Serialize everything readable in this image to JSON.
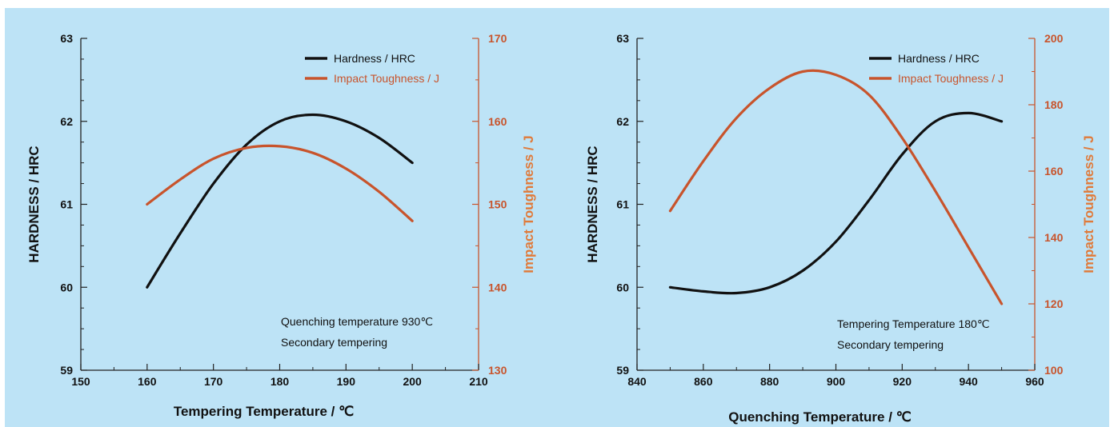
{
  "colors": {
    "hardness": "#111111",
    "toughness": "#c8542c",
    "toughness_axis": "#e07a3a",
    "background": "#bde3f6"
  },
  "chart_data": [
    {
      "type": "line",
      "xlabel": "Tempering Temperature / ℃",
      "ylabel": "HARDNESS / HRC",
      "y2label": "Impact Toughness / J",
      "xlim": [
        150,
        210
      ],
      "xticks": [
        150,
        160,
        170,
        180,
        190,
        200,
        210
      ],
      "ylim": [
        59,
        63
      ],
      "yticks": [
        59,
        60,
        61,
        62,
        63
      ],
      "y2lim": [
        130,
        170
      ],
      "y2ticks": [
        130,
        140,
        150,
        160,
        170
      ],
      "legend_position": "top-right",
      "grid": false,
      "notes": [
        "Quenching temperature 930℃",
        "Secondary tempering"
      ],
      "series": [
        {
          "name": "Hardness / HRC",
          "axis": "left",
          "color": "#111111",
          "x": [
            160,
            165,
            170,
            175,
            180,
            185,
            190,
            195,
            200
          ],
          "y": [
            60.0,
            60.65,
            61.25,
            61.72,
            62.0,
            62.08,
            62.0,
            61.8,
            61.5
          ]
        },
        {
          "name": "Impact Toughness / J",
          "axis": "right",
          "color": "#c8542c",
          "x": [
            160,
            165,
            170,
            175,
            180,
            185,
            190,
            195,
            200
          ],
          "y": [
            150,
            153,
            155.5,
            156.8,
            157,
            156.2,
            154.3,
            151.5,
            148
          ]
        }
      ]
    },
    {
      "type": "line",
      "xlabel": "Quenching Temperature / ℃",
      "ylabel": "HARDNESS / HRC",
      "y2label": "Impact Toughness / J",
      "xlim": [
        840,
        960
      ],
      "xticks": [
        840,
        860,
        880,
        900,
        920,
        940,
        960
      ],
      "ylim": [
        59,
        63
      ],
      "yticks": [
        59,
        60,
        61,
        62,
        63
      ],
      "y2lim": [
        100,
        200
      ],
      "y2ticks": [
        100,
        120,
        140,
        160,
        180,
        200
      ],
      "legend_position": "top-right",
      "grid": false,
      "notes": [
        "Tempering Temperature 180℃",
        "Secondary tempering"
      ],
      "series": [
        {
          "name": "Hardness / HRC",
          "axis": "left",
          "color": "#111111",
          "x": [
            850,
            860,
            870,
            880,
            890,
            900,
            910,
            920,
            930,
            940,
            950
          ],
          "y": [
            60.0,
            59.95,
            59.93,
            60.0,
            60.2,
            60.55,
            61.05,
            61.6,
            62.0,
            62.1,
            62.0
          ]
        },
        {
          "name": "Impact Toughness / J",
          "axis": "right",
          "color": "#c8542c",
          "x": [
            850,
            860,
            870,
            880,
            890,
            900,
            910,
            920,
            930,
            940,
            950
          ],
          "y": [
            148,
            163,
            176,
            185,
            190,
            189,
            183,
            170,
            154,
            137,
            120
          ]
        }
      ]
    }
  ]
}
